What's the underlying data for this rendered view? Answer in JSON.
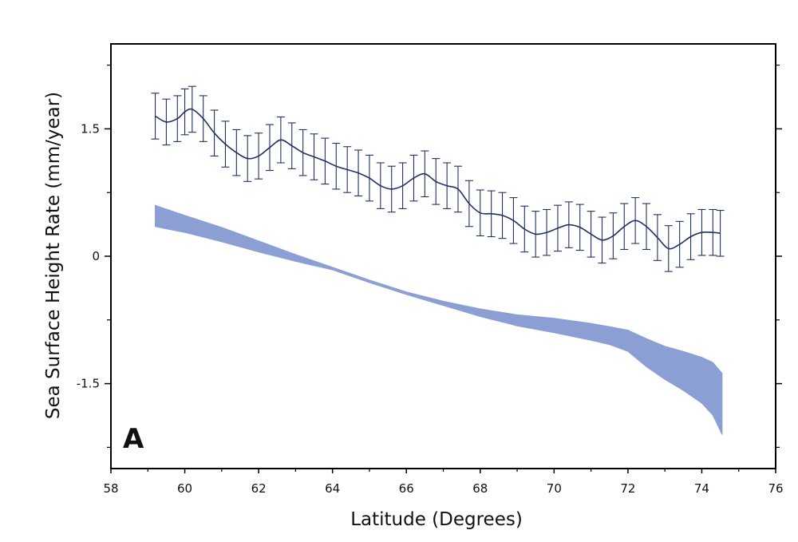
{
  "chart_data": {
    "type": "line",
    "panel_label": "A",
    "xlabel": "Latitude (Degrees)",
    "ylabel": "Sea Surface Height Rate (mm/year)",
    "xlim": [
      58,
      76
    ],
    "ylim": [
      -2.5,
      2.5
    ],
    "xticks": [
      58,
      60,
      62,
      64,
      66,
      68,
      70,
      72,
      74,
      76
    ],
    "yticks": [
      {
        "value": 1.5,
        "label": "1.5"
      },
      {
        "value": 0,
        "label": "0"
      },
      {
        "value": -1.5,
        "label": "-1.5"
      }
    ],
    "grid": false,
    "colors": {
      "line": "#1f3264",
      "band": "#8c9fd4",
      "axis": "#000000"
    },
    "series": [
      {
        "kind": "line_with_errorbars",
        "x": [
          59.2,
          59.5,
          59.8,
          60.0,
          60.2,
          60.5,
          60.8,
          61.1,
          61.4,
          61.7,
          62.0,
          62.3,
          62.6,
          62.9,
          63.2,
          63.5,
          63.8,
          64.1,
          64.4,
          64.7,
          65.0,
          65.3,
          65.6,
          65.9,
          66.2,
          66.5,
          66.8,
          67.1,
          67.4,
          67.7,
          68.0,
          68.3,
          68.6,
          68.9,
          69.2,
          69.5,
          69.8,
          70.1,
          70.4,
          70.7,
          71.0,
          71.3,
          71.6,
          71.9,
          72.2,
          72.5,
          72.8,
          73.1,
          73.4,
          73.7,
          74.0,
          74.3,
          74.5
        ],
        "y": [
          1.65,
          1.58,
          1.62,
          1.7,
          1.73,
          1.62,
          1.45,
          1.32,
          1.22,
          1.15,
          1.18,
          1.28,
          1.37,
          1.3,
          1.22,
          1.17,
          1.12,
          1.06,
          1.02,
          0.98,
          0.92,
          0.83,
          0.79,
          0.83,
          0.92,
          0.97,
          0.88,
          0.83,
          0.79,
          0.62,
          0.51,
          0.5,
          0.48,
          0.42,
          0.32,
          0.26,
          0.28,
          0.33,
          0.37,
          0.34,
          0.26,
          0.19,
          0.24,
          0.35,
          0.42,
          0.35,
          0.22,
          0.09,
          0.14,
          0.23,
          0.28,
          0.28,
          0.27
        ],
        "error": 0.27
      },
      {
        "kind": "band",
        "x": [
          59.2,
          60.0,
          61.0,
          62.0,
          63.0,
          64.0,
          65.0,
          66.0,
          67.0,
          68.0,
          69.0,
          70.0,
          71.0,
          71.5,
          72.0,
          72.5,
          73.0,
          73.5,
          74.0,
          74.3,
          74.55
        ],
        "upper": [
          0.6,
          0.48,
          0.34,
          0.18,
          0.02,
          -0.13,
          -0.28,
          -0.42,
          -0.53,
          -0.62,
          -0.69,
          -0.73,
          -0.79,
          -0.83,
          -0.87,
          -0.97,
          -1.06,
          -1.12,
          -1.19,
          -1.25,
          -1.38
        ],
        "lower": [
          0.35,
          0.28,
          0.17,
          0.05,
          -0.06,
          -0.16,
          -0.31,
          -0.45,
          -0.58,
          -0.71,
          -0.82,
          -0.9,
          -0.99,
          -1.04,
          -1.12,
          -1.3,
          -1.45,
          -1.58,
          -1.73,
          -1.87,
          -2.1
        ]
      }
    ]
  }
}
